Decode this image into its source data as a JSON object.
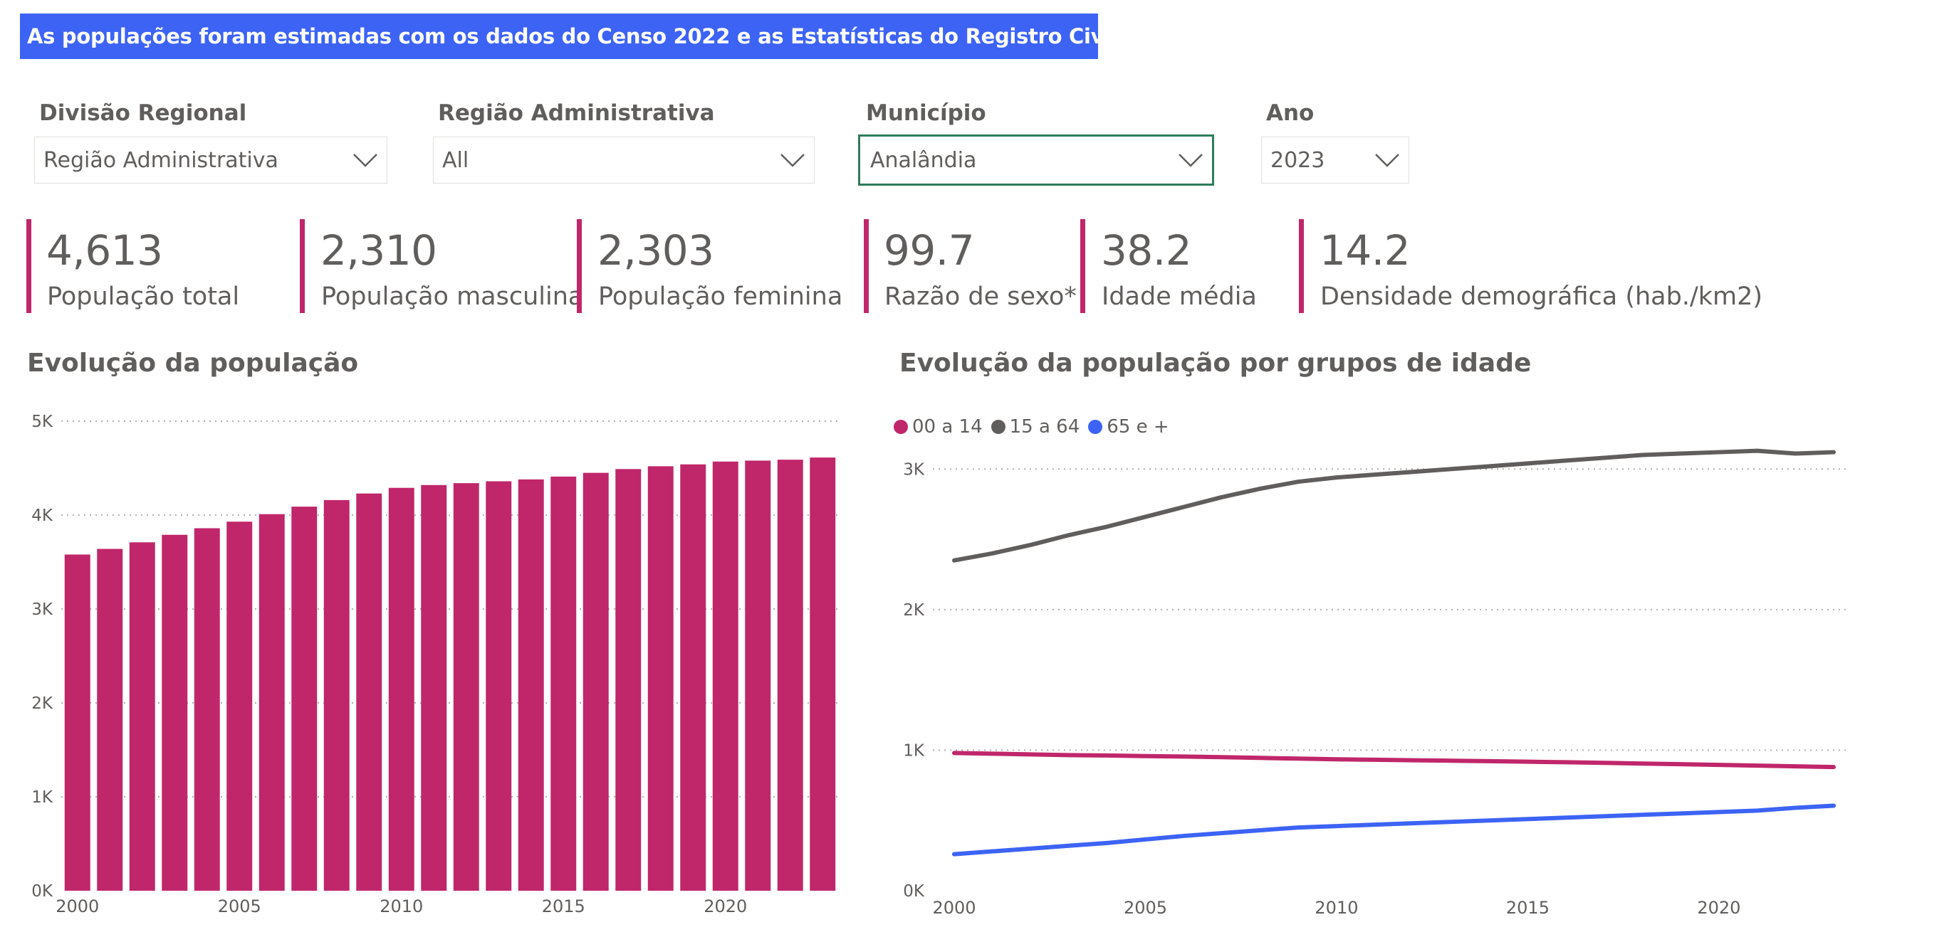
{
  "banner": {
    "text": "As populações foram estimadas com os dados do Censo 2022 e as Estatísticas do Registro Civil."
  },
  "slicers": [
    {
      "title": "Divisão Regional",
      "value": "Região Administrativa"
    },
    {
      "title": "Região Administrativa",
      "value": "All"
    },
    {
      "title": "Município",
      "value": "Analândia"
    },
    {
      "title": "Ano",
      "value": "2023"
    }
  ],
  "kpis": [
    {
      "value": "4,613",
      "label": "População total"
    },
    {
      "value": "2,310",
      "label": "População masculina"
    },
    {
      "value": "2,303",
      "label": "População feminina"
    },
    {
      "value": "99.7",
      "label": "Razão de sexo*"
    },
    {
      "value": "38.2",
      "label": "Idade média"
    },
    {
      "value": "14.2",
      "label": "Densidade demográfica (hab./km2)"
    }
  ],
  "colors": {
    "accent": "#c0266a",
    "banner": "#3d63f5",
    "series_0014": "#c0266a",
    "series_1564": "#605e5c",
    "series_65": "#3d63f5",
    "active_border": "#2e7d5b"
  },
  "chart_data": [
    {
      "type": "bar",
      "title": "Evolução da população",
      "x": [
        2000,
        2001,
        2002,
        2003,
        2004,
        2005,
        2006,
        2007,
        2008,
        2009,
        2010,
        2011,
        2012,
        2013,
        2014,
        2015,
        2016,
        2017,
        2018,
        2019,
        2020,
        2021,
        2022,
        2023
      ],
      "values": [
        3580,
        3640,
        3710,
        3790,
        3860,
        3930,
        4010,
        4090,
        4160,
        4230,
        4290,
        4320,
        4340,
        4360,
        4380,
        4410,
        4450,
        4490,
        4520,
        4540,
        4570,
        4580,
        4590,
        4613
      ],
      "ylim": [
        0,
        5000
      ],
      "yticks": [
        "0K",
        "1K",
        "2K",
        "3K",
        "4K",
        "5K"
      ],
      "xticks": [
        "2000",
        "2005",
        "2010",
        "2015",
        "2020"
      ],
      "grid": true
    },
    {
      "type": "line",
      "title": "Evolução da população por grupos de idade",
      "legend_position": "top-left",
      "x": [
        2000,
        2001,
        2002,
        2003,
        2004,
        2005,
        2006,
        2007,
        2008,
        2009,
        2010,
        2011,
        2012,
        2013,
        2014,
        2015,
        2016,
        2017,
        2018,
        2019,
        2020,
        2021,
        2022,
        2023
      ],
      "series": [
        {
          "name": "00 a 14",
          "values": [
            980,
            975,
            970,
            965,
            962,
            958,
            955,
            950,
            945,
            940,
            935,
            932,
            928,
            925,
            922,
            918,
            914,
            910,
            905,
            900,
            895,
            890,
            885,
            880
          ]
        },
        {
          "name": "15 a 64",
          "values": [
            2350,
            2400,
            2460,
            2530,
            2590,
            2660,
            2730,
            2800,
            2860,
            2910,
            2940,
            2960,
            2980,
            3000,
            3020,
            3040,
            3060,
            3080,
            3100,
            3110,
            3120,
            3130,
            3110,
            3120
          ]
        },
        {
          "name": "65 e +",
          "values": [
            260,
            280,
            300,
            320,
            340,
            365,
            390,
            410,
            430,
            450,
            460,
            470,
            480,
            490,
            500,
            510,
            520,
            530,
            540,
            550,
            560,
            570,
            590,
            605
          ]
        }
      ],
      "ylim": [
        0,
        3300
      ],
      "yticks": [
        "0K",
        "1K",
        "2K",
        "3K"
      ],
      "xticks": [
        "2000",
        "2005",
        "2010",
        "2015",
        "2020"
      ],
      "grid": true
    }
  ]
}
